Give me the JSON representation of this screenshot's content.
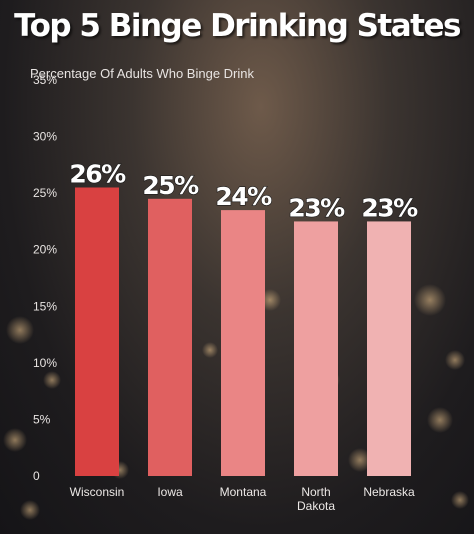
{
  "chart_data": {
    "type": "bar",
    "title": "Top 5 Binge Drinking States",
    "subtitle": "Percentage Of Adults Who Binge Drink",
    "categories": [
      "Wisconsin",
      "Iowa",
      "Montana",
      "North Dakota",
      "Nebraska"
    ],
    "values": [
      25.5,
      24.5,
      23.5,
      22.5,
      22.5
    ],
    "data_labels": [
      "26%",
      "25%",
      "24%",
      "23%",
      "23%"
    ],
    "y_ticks": [
      0,
      5,
      10,
      15,
      20,
      25,
      30,
      35
    ],
    "y_tick_labels": [
      "0",
      "5%",
      "10%",
      "15%",
      "20%",
      "25%",
      "30%",
      "35%"
    ],
    "ylim": [
      0,
      35
    ],
    "xlabel": "",
    "ylabel": "",
    "grid": false,
    "legend": "none",
    "bar_colors": [
      "#d94141",
      "#e06060",
      "#ea8585",
      "#eea0a0",
      "#f0b2b2"
    ]
  }
}
